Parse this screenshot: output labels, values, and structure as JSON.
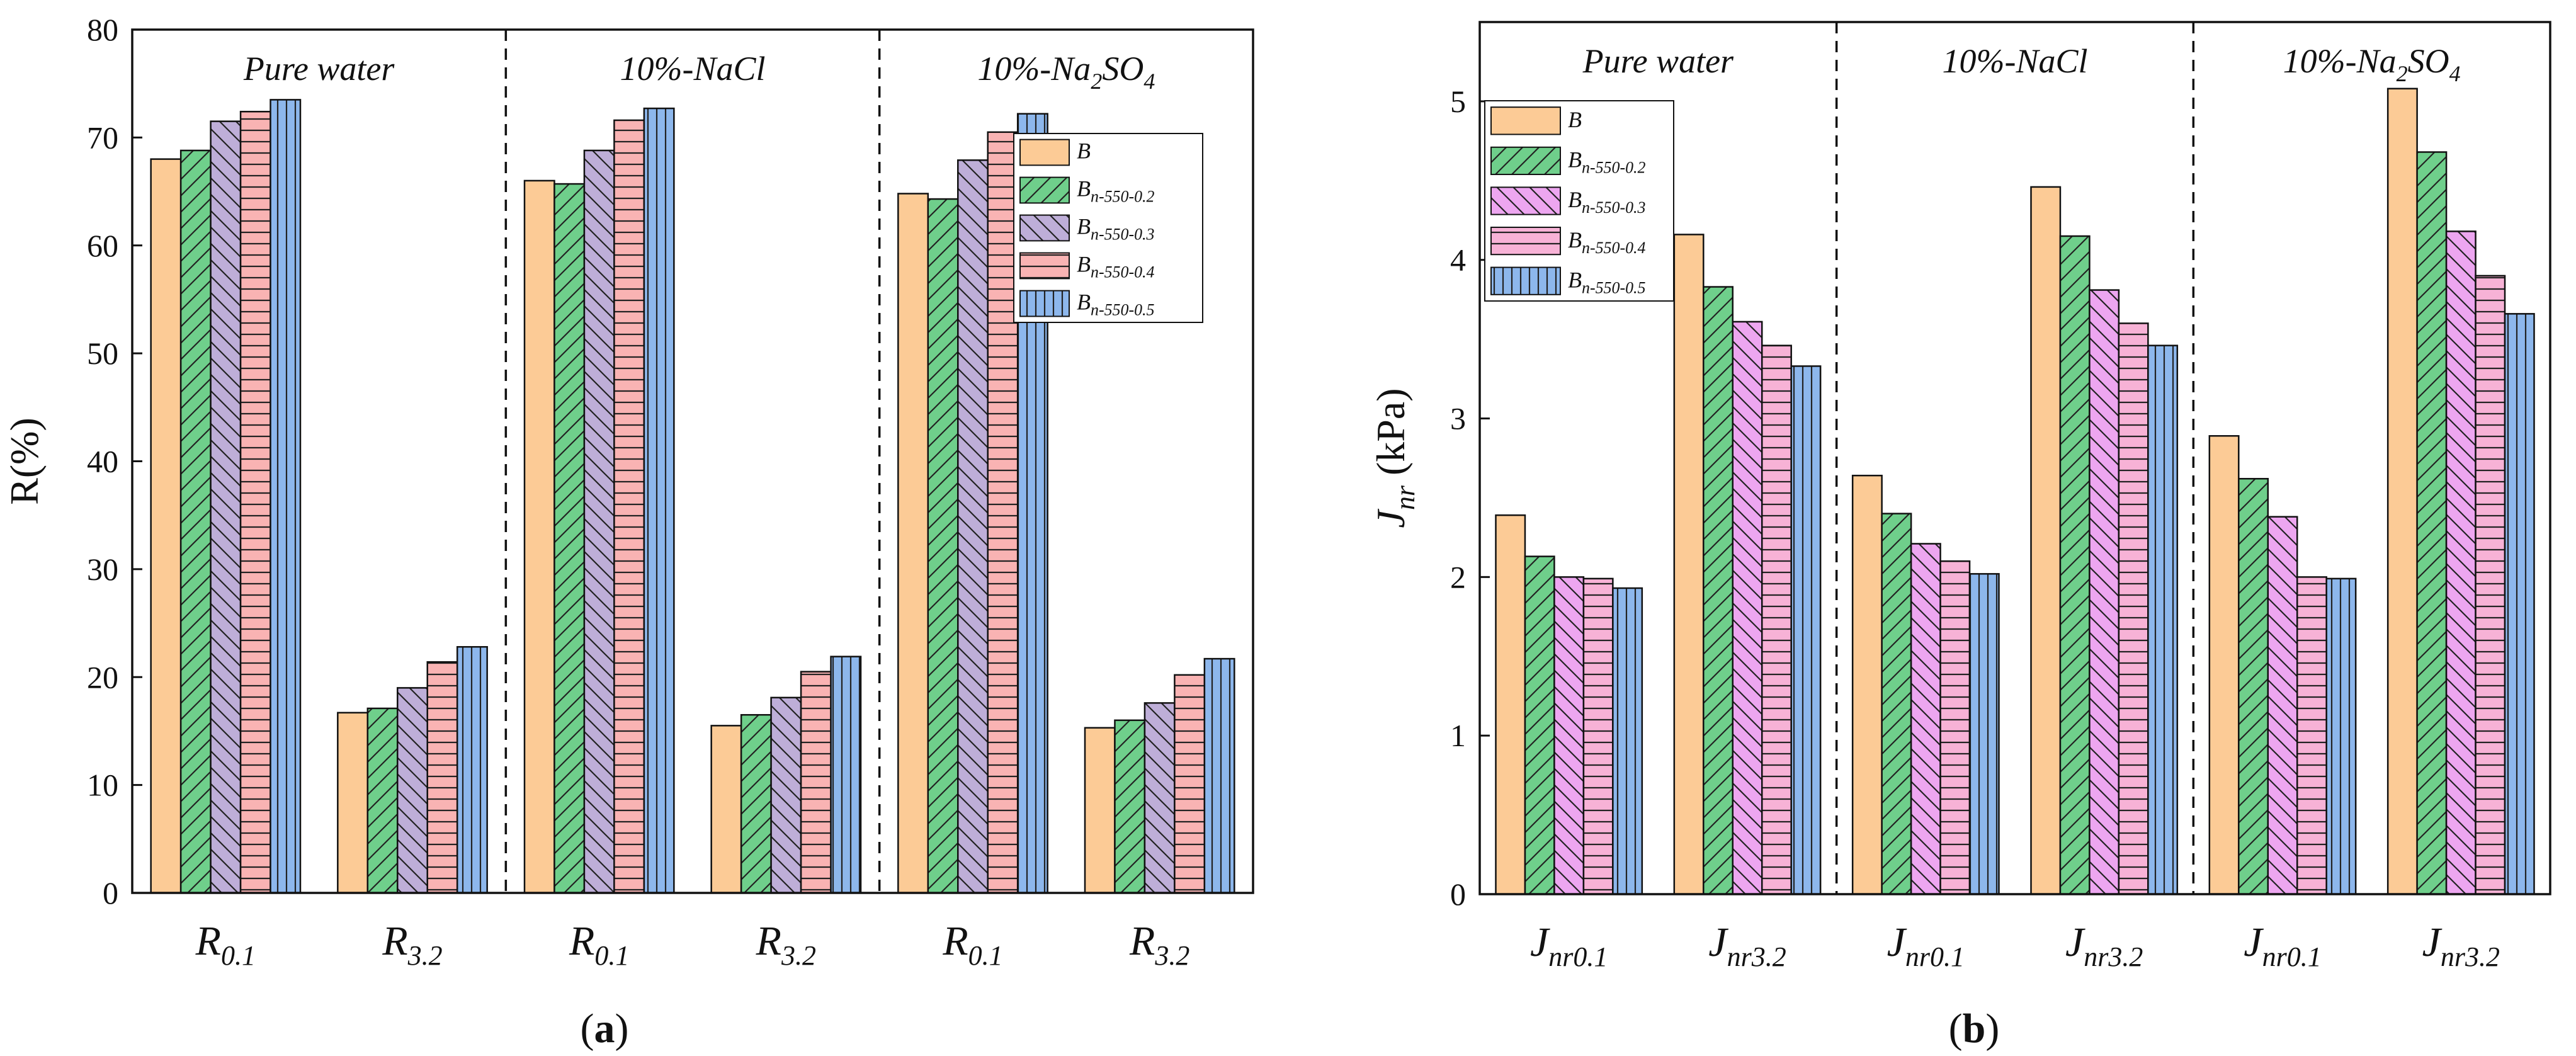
{
  "chart_data": [
    {
      "type": "bar",
      "panel": "(a)",
      "panel_letter": "a",
      "ylabel": "R(%)",
      "ylim": [
        0,
        80
      ],
      "yticks": [
        0,
        10,
        20,
        30,
        40,
        50,
        60,
        70,
        80
      ],
      "grid": false,
      "legend_position": "top-right",
      "groups": [
        {
          "label": "Pure water",
          "label_sub": null
        },
        {
          "label": "10%-NaCl",
          "label_sub": null
        },
        {
          "label": "10%-Na",
          "label_sub": "2",
          "label_after": "SO",
          "label_sub2": "4"
        }
      ],
      "categories": [
        {
          "main": "R",
          "sub": "0.1"
        },
        {
          "main": "R",
          "sub": "3.2"
        },
        {
          "main": "R",
          "sub": "0.1"
        },
        {
          "main": "R",
          "sub": "3.2"
        },
        {
          "main": "R",
          "sub": "0.1"
        },
        {
          "main": "R",
          "sub": "3.2"
        }
      ],
      "series": [
        {
          "name": "B",
          "sub": "",
          "values": [
            68.0,
            16.7,
            66.0,
            15.5,
            64.8,
            15.3
          ]
        },
        {
          "name": "B",
          "sub": "n-550-0.2",
          "values": [
            68.8,
            17.1,
            65.7,
            16.5,
            64.3,
            16.0
          ]
        },
        {
          "name": "B",
          "sub": "n-550-0.3",
          "values": [
            71.5,
            19.0,
            68.8,
            18.1,
            67.9,
            17.6
          ]
        },
        {
          "name": "B",
          "sub": "n-550-0.4",
          "values": [
            72.4,
            21.4,
            71.6,
            20.5,
            70.5,
            20.2
          ]
        },
        {
          "name": "B",
          "sub": "n-550-0.5",
          "values": [
            73.5,
            22.8,
            72.7,
            21.9,
            72.2,
            21.7
          ]
        }
      ]
    },
    {
      "type": "bar",
      "panel": "(b)",
      "panel_letter": "b",
      "ylabel": "J",
      "ylabel_sub": "nr",
      "ylabel_unit": " (kPa)",
      "ylim": [
        0,
        5.5
      ],
      "yticks": [
        0,
        1,
        2,
        3,
        4,
        5
      ],
      "grid": false,
      "legend_position": "top-left",
      "groups": [
        {
          "label": "Pure water",
          "label_sub": null
        },
        {
          "label": "10%-NaCl",
          "label_sub": null
        },
        {
          "label": "10%-Na",
          "label_sub": "2",
          "label_after": "SO",
          "label_sub2": "4"
        }
      ],
      "categories": [
        {
          "main": "J",
          "sub": "nr0.1"
        },
        {
          "main": "J",
          "sub": "nr3.2"
        },
        {
          "main": "J",
          "sub": "nr0.1"
        },
        {
          "main": "J",
          "sub": "nr3.2"
        },
        {
          "main": "J",
          "sub": "nr0.1"
        },
        {
          "main": "J",
          "sub": "nr3.2"
        }
      ],
      "series": [
        {
          "name": "B",
          "sub": "",
          "values": [
            2.39,
            4.16,
            2.64,
            4.46,
            2.89,
            5.08
          ]
        },
        {
          "name": "B",
          "sub": "n-550-0.2",
          "values": [
            2.13,
            3.83,
            2.4,
            4.15,
            2.62,
            4.68
          ]
        },
        {
          "name": "B",
          "sub": "n-550-0.3",
          "values": [
            2.0,
            3.61,
            2.21,
            3.81,
            2.38,
            4.18
          ]
        },
        {
          "name": "B",
          "sub": "n-550-0.4",
          "values": [
            1.99,
            3.46,
            2.1,
            3.6,
            2.0,
            3.9
          ]
        },
        {
          "name": "B",
          "sub": "n-550-0.5",
          "values": [
            1.93,
            3.33,
            2.02,
            3.46,
            1.99,
            3.66
          ]
        }
      ]
    }
  ],
  "colors": {
    "panel_a": [
      "#FCCB96",
      "#6FCF8B",
      "#BEAED8",
      "#F9B3B3",
      "#8DB7EC"
    ],
    "panel_b": [
      "#FCCB96",
      "#6FCF8B",
      "#EDA6F0",
      "#F7B2D6",
      "#8DB7EC"
    ],
    "axis": "#111111",
    "stroke": "#111111"
  },
  "patterns": [
    "none",
    "diag-up",
    "diag-down",
    "horizontal",
    "vertical"
  ]
}
